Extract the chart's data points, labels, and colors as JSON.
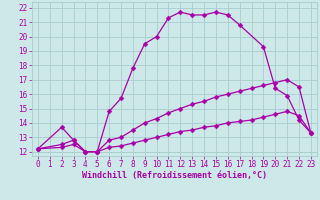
{
  "bg_color": "#cce8e8",
  "grid_color": "#aacccc",
  "line_color": "#aa00aa",
  "xlabel": "Windchill (Refroidissement éolien,°C)",
  "xlim_min": -0.5,
  "xlim_max": 23.5,
  "ylim_min": 11.7,
  "ylim_max": 22.4,
  "xticks": [
    0,
    1,
    2,
    3,
    4,
    5,
    6,
    7,
    8,
    9,
    10,
    11,
    12,
    13,
    14,
    15,
    16,
    17,
    18,
    19,
    20,
    21,
    22,
    23
  ],
  "yticks": [
    12,
    13,
    14,
    15,
    16,
    17,
    18,
    19,
    20,
    21,
    22
  ],
  "line1_x": [
    0,
    2,
    3,
    4,
    5,
    6,
    7,
    8,
    9,
    10,
    11,
    12,
    13,
    14,
    15,
    16,
    17,
    19,
    20,
    21,
    22,
    23
  ],
  "line1_y": [
    12.2,
    13.7,
    12.8,
    12.0,
    12.0,
    14.8,
    15.7,
    17.8,
    19.5,
    20.0,
    21.3,
    21.7,
    21.5,
    21.5,
    21.7,
    21.5,
    20.8,
    19.3,
    16.4,
    15.9,
    14.2,
    13.3
  ],
  "line2_x": [
    0,
    2,
    3,
    4,
    5,
    6,
    7,
    8,
    9,
    10,
    11,
    12,
    13,
    14,
    15,
    16,
    17,
    18,
    19,
    20,
    21,
    22,
    23
  ],
  "line2_y": [
    12.2,
    12.5,
    12.8,
    12.0,
    12.0,
    12.8,
    13.0,
    13.5,
    14.0,
    14.3,
    14.7,
    15.0,
    15.3,
    15.5,
    15.8,
    16.0,
    16.2,
    16.4,
    16.6,
    16.8,
    17.0,
    16.5,
    13.3
  ],
  "line3_x": [
    0,
    2,
    3,
    4,
    5,
    6,
    7,
    8,
    9,
    10,
    11,
    12,
    13,
    14,
    15,
    16,
    17,
    18,
    19,
    20,
    21,
    22,
    23
  ],
  "line3_y": [
    12.2,
    12.3,
    12.5,
    12.0,
    12.0,
    12.3,
    12.4,
    12.6,
    12.8,
    13.0,
    13.2,
    13.4,
    13.5,
    13.7,
    13.8,
    14.0,
    14.1,
    14.2,
    14.4,
    14.6,
    14.8,
    14.5,
    13.3
  ],
  "tick_fontsize": 5.5,
  "xlabel_fontsize": 6.0,
  "linewidth": 0.9,
  "markersize": 2.5
}
